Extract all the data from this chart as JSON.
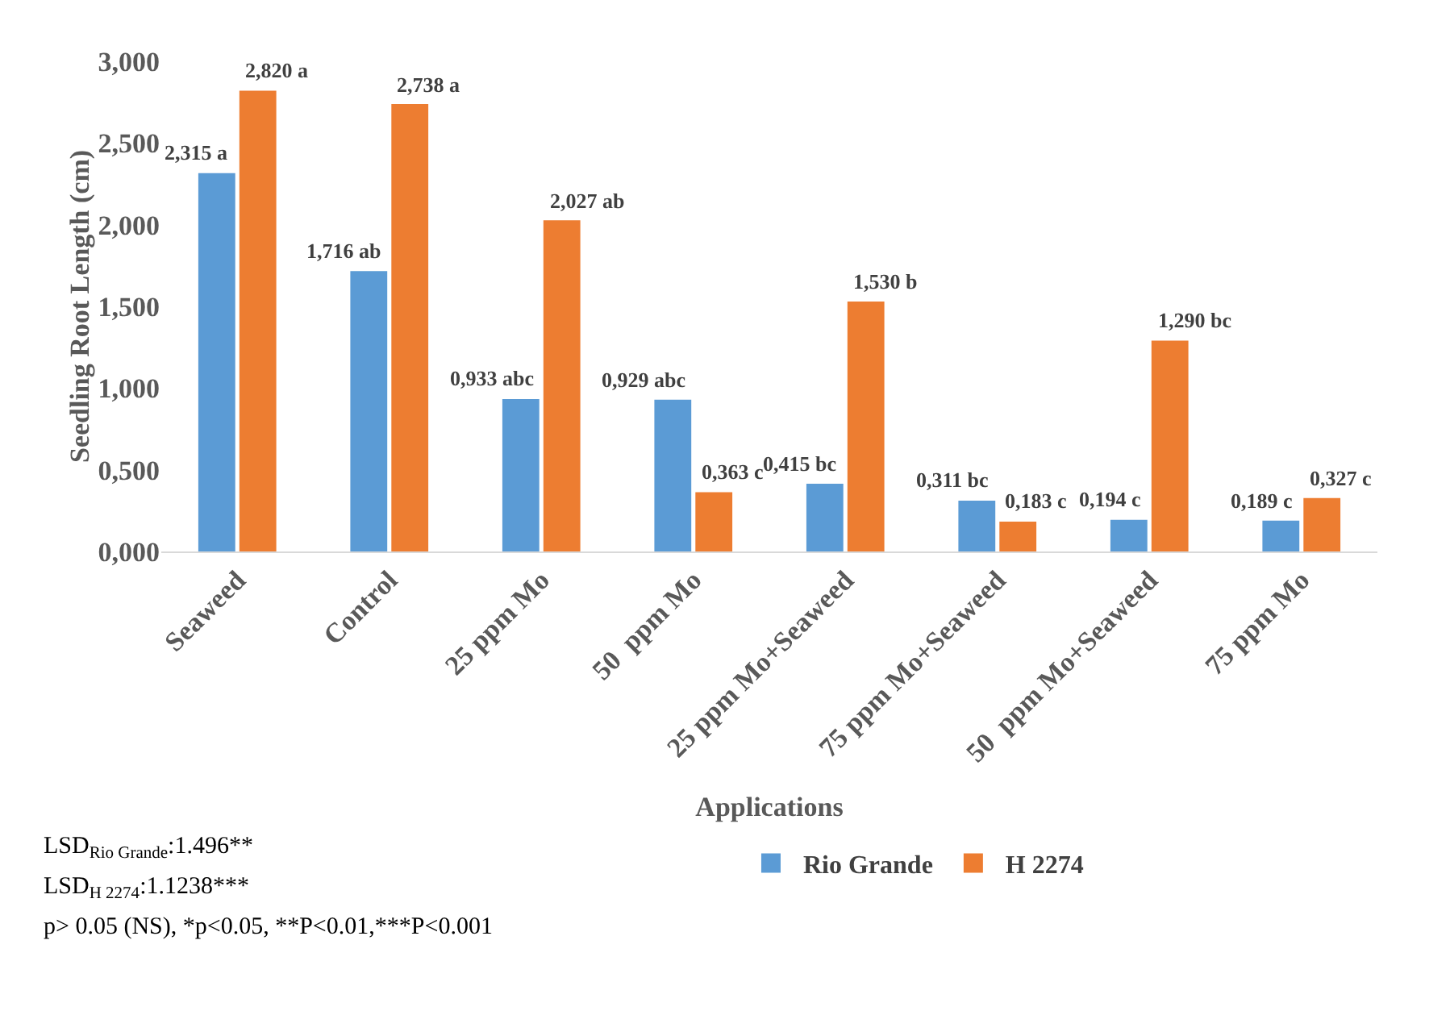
{
  "chart_data": {
    "type": "bar",
    "xlabel": "Applications",
    "ylabel": "Seedling Root Length (cm)",
    "categories": [
      "Seaweed",
      "Control",
      "25 ppm Mo",
      "50  ppm Mo",
      "25 ppm Mo+Seaweed",
      "75 ppm Mo+Seaweed",
      "50  ppm Mo+Seaweed",
      "75 ppm Mo"
    ],
    "series": [
      {
        "name": "Rio Grande",
        "color": "#5b9bd5",
        "values": [
          2.315,
          1.716,
          0.933,
          0.929,
          0.415,
          0.311,
          0.194,
          0.189
        ],
        "value_labels": [
          "2,315 a",
          "1,716 ab",
          "0,933 abc",
          "0,929 abc",
          "0,415 bc",
          "0,311 bc",
          "0,194 c",
          "0,189 c"
        ]
      },
      {
        "name": "H 2274",
        "color": "#ed7d31",
        "values": [
          2.82,
          2.738,
          2.027,
          0.363,
          1.53,
          0.183,
          1.29,
          0.327
        ],
        "value_labels": [
          "2,820 a",
          "2,738 a",
          "2,027 ab",
          "0,363 c",
          "1,530 b",
          "0,183 c",
          "1,290 bc",
          "0,327 c"
        ]
      }
    ],
    "ylim": [
      0,
      3
    ],
    "yticks": [
      {
        "value": 0,
        "label": "0,000"
      },
      {
        "value": 0.5,
        "label": "0,500"
      },
      {
        "value": 1,
        "label": "1,000"
      },
      {
        "value": 1.5,
        "label": "1,500"
      },
      {
        "value": 2,
        "label": "2,000"
      },
      {
        "value": 2.5,
        "label": "2,500"
      },
      {
        "value": 3,
        "label": "3,000"
      }
    ],
    "grid": false,
    "legend": "bottom",
    "annotations": [
      "LSD$_{Rio Grande}$:1.496**",
      "LSD$_{H 2274}$:1.1238***",
      "p> 0.05 (NS), *p<0.05, **P<0.01,***P<0.001"
    ]
  }
}
